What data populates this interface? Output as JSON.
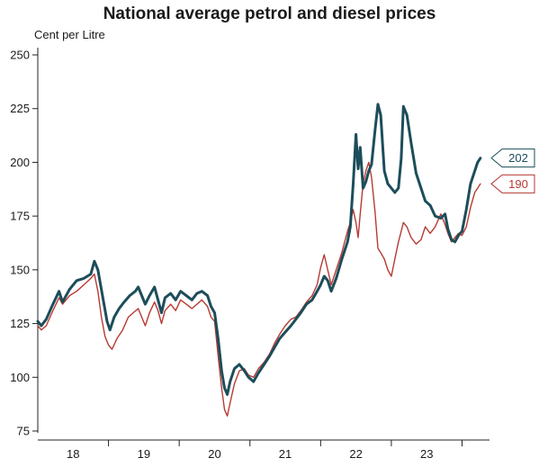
{
  "chart_data": {
    "type": "line",
    "title": "National average petrol and diesel prices",
    "ylabel": "Cent per Litre",
    "xlabel": "",
    "ylim": [
      75,
      250
    ],
    "yticks": [
      75,
      100,
      125,
      150,
      175,
      200,
      225,
      250
    ],
    "xlim": [
      2017.5,
      2023.85
    ],
    "xticks": [
      2018,
      2019,
      2020,
      2021,
      2022,
      2023
    ],
    "xtick_labels": [
      "18",
      "19",
      "20",
      "21",
      "22",
      "23"
    ],
    "year_boundaries": [
      2018.5,
      2019.5,
      2020.5,
      2021.5,
      2022.5,
      2023.5
    ],
    "grid": false,
    "series": [
      {
        "key": "diesel",
        "color": "#1d4d5a",
        "end_label": "202",
        "points": [
          [
            2017.5,
            126
          ],
          [
            2017.55,
            124
          ],
          [
            2017.62,
            127
          ],
          [
            2017.7,
            133
          ],
          [
            2017.8,
            140
          ],
          [
            2017.85,
            135
          ],
          [
            2017.95,
            141
          ],
          [
            2018.05,
            145
          ],
          [
            2018.15,
            146
          ],
          [
            2018.25,
            148
          ],
          [
            2018.3,
            154
          ],
          [
            2018.35,
            150
          ],
          [
            2018.42,
            137
          ],
          [
            2018.48,
            126
          ],
          [
            2018.52,
            122
          ],
          [
            2018.58,
            128
          ],
          [
            2018.65,
            132
          ],
          [
            2018.72,
            135
          ],
          [
            2018.8,
            138
          ],
          [
            2018.88,
            140
          ],
          [
            2018.92,
            142
          ],
          [
            2018.97,
            138
          ],
          [
            2019.02,
            134
          ],
          [
            2019.08,
            138
          ],
          [
            2019.15,
            142
          ],
          [
            2019.2,
            136
          ],
          [
            2019.25,
            130
          ],
          [
            2019.3,
            137
          ],
          [
            2019.38,
            139
          ],
          [
            2019.45,
            136
          ],
          [
            2019.52,
            140
          ],
          [
            2019.6,
            138
          ],
          [
            2019.68,
            136
          ],
          [
            2019.75,
            139
          ],
          [
            2019.82,
            140
          ],
          [
            2019.9,
            138
          ],
          [
            2019.95,
            133
          ],
          [
            2020.0,
            130
          ],
          [
            2020.05,
            118
          ],
          [
            2020.1,
            103
          ],
          [
            2020.14,
            95
          ],
          [
            2020.18,
            92
          ],
          [
            2020.22,
            98
          ],
          [
            2020.28,
            104
          ],
          [
            2020.35,
            106
          ],
          [
            2020.42,
            103
          ],
          [
            2020.48,
            100
          ],
          [
            2020.55,
            98
          ],
          [
            2020.62,
            102
          ],
          [
            2020.7,
            106
          ],
          [
            2020.78,
            110
          ],
          [
            2020.85,
            114
          ],
          [
            2020.92,
            118
          ],
          [
            2021.0,
            121
          ],
          [
            2021.08,
            124
          ],
          [
            2021.15,
            127
          ],
          [
            2021.22,
            130
          ],
          [
            2021.3,
            134
          ],
          [
            2021.38,
            136
          ],
          [
            2021.45,
            140
          ],
          [
            2021.5,
            143
          ],
          [
            2021.55,
            147
          ],
          [
            2021.6,
            145
          ],
          [
            2021.65,
            140
          ],
          [
            2021.72,
            146
          ],
          [
            2021.8,
            155
          ],
          [
            2021.88,
            163
          ],
          [
            2021.92,
            170
          ],
          [
            2021.96,
            190
          ],
          [
            2022.0,
            213
          ],
          [
            2022.03,
            197
          ],
          [
            2022.06,
            207
          ],
          [
            2022.1,
            188
          ],
          [
            2022.14,
            191
          ],
          [
            2022.18,
            196
          ],
          [
            2022.22,
            199
          ],
          [
            2022.27,
            215
          ],
          [
            2022.31,
            227
          ],
          [
            2022.35,
            222
          ],
          [
            2022.4,
            196
          ],
          [
            2022.45,
            190
          ],
          [
            2022.5,
            188
          ],
          [
            2022.55,
            186
          ],
          [
            2022.6,
            188
          ],
          [
            2022.64,
            202
          ],
          [
            2022.67,
            226
          ],
          [
            2022.72,
            222
          ],
          [
            2022.78,
            209
          ],
          [
            2022.85,
            195
          ],
          [
            2022.92,
            188
          ],
          [
            2022.98,
            182
          ],
          [
            2023.05,
            180
          ],
          [
            2023.12,
            175
          ],
          [
            2023.2,
            174
          ],
          [
            2023.26,
            176
          ],
          [
            2023.3,
            169
          ],
          [
            2023.35,
            164
          ],
          [
            2023.4,
            163
          ],
          [
            2023.45,
            166
          ],
          [
            2023.5,
            168
          ],
          [
            2023.56,
            178
          ],
          [
            2023.62,
            190
          ],
          [
            2023.68,
            196
          ],
          [
            2023.72,
            200
          ],
          [
            2023.76,
            202
          ]
        ]
      },
      {
        "key": "petrol",
        "color": "#b73a33",
        "end_label": "190",
        "points": [
          [
            2017.5,
            124
          ],
          [
            2017.55,
            122
          ],
          [
            2017.62,
            124
          ],
          [
            2017.7,
            130
          ],
          [
            2017.8,
            137
          ],
          [
            2017.85,
            134
          ],
          [
            2017.95,
            138
          ],
          [
            2018.05,
            140
          ],
          [
            2018.15,
            143
          ],
          [
            2018.25,
            146
          ],
          [
            2018.3,
            148
          ],
          [
            2018.35,
            140
          ],
          [
            2018.4,
            128
          ],
          [
            2018.45,
            119
          ],
          [
            2018.5,
            115
          ],
          [
            2018.55,
            113
          ],
          [
            2018.62,
            118
          ],
          [
            2018.7,
            122
          ],
          [
            2018.78,
            128
          ],
          [
            2018.85,
            130
          ],
          [
            2018.92,
            132
          ],
          [
            2018.97,
            128
          ],
          [
            2019.02,
            124
          ],
          [
            2019.08,
            130
          ],
          [
            2019.15,
            135
          ],
          [
            2019.2,
            131
          ],
          [
            2019.25,
            125
          ],
          [
            2019.3,
            131
          ],
          [
            2019.38,
            134
          ],
          [
            2019.45,
            131
          ],
          [
            2019.52,
            136
          ],
          [
            2019.6,
            134
          ],
          [
            2019.68,
            132
          ],
          [
            2019.75,
            134
          ],
          [
            2019.82,
            136
          ],
          [
            2019.9,
            133
          ],
          [
            2019.95,
            128
          ],
          [
            2020.0,
            126
          ],
          [
            2020.05,
            110
          ],
          [
            2020.1,
            95
          ],
          [
            2020.14,
            85
          ],
          [
            2020.18,
            82
          ],
          [
            2020.22,
            88
          ],
          [
            2020.28,
            97
          ],
          [
            2020.35,
            103
          ],
          [
            2020.42,
            104
          ],
          [
            2020.48,
            101
          ],
          [
            2020.55,
            100
          ],
          [
            2020.62,
            104
          ],
          [
            2020.7,
            107
          ],
          [
            2020.78,
            111
          ],
          [
            2020.85,
            116
          ],
          [
            2020.92,
            120
          ],
          [
            2021.0,
            124
          ],
          [
            2021.08,
            127
          ],
          [
            2021.15,
            128
          ],
          [
            2021.22,
            131
          ],
          [
            2021.3,
            135
          ],
          [
            2021.38,
            138
          ],
          [
            2021.45,
            143
          ],
          [
            2021.5,
            151
          ],
          [
            2021.55,
            157
          ],
          [
            2021.6,
            150
          ],
          [
            2021.65,
            143
          ],
          [
            2021.72,
            150
          ],
          [
            2021.8,
            158
          ],
          [
            2021.88,
            168
          ],
          [
            2021.92,
            172
          ],
          [
            2021.96,
            178
          ],
          [
            2022.0,
            172
          ],
          [
            2022.03,
            165
          ],
          [
            2022.06,
            176
          ],
          [
            2022.1,
            190
          ],
          [
            2022.14,
            196
          ],
          [
            2022.18,
            200
          ],
          [
            2022.22,
            193
          ],
          [
            2022.27,
            177
          ],
          [
            2022.31,
            160
          ],
          [
            2022.35,
            158
          ],
          [
            2022.4,
            155
          ],
          [
            2022.45,
            150
          ],
          [
            2022.5,
            147
          ],
          [
            2022.55,
            155
          ],
          [
            2022.6,
            163
          ],
          [
            2022.64,
            168
          ],
          [
            2022.67,
            172
          ],
          [
            2022.72,
            170
          ],
          [
            2022.78,
            165
          ],
          [
            2022.85,
            162
          ],
          [
            2022.92,
            164
          ],
          [
            2022.98,
            170
          ],
          [
            2023.05,
            167
          ],
          [
            2023.12,
            170
          ],
          [
            2023.2,
            176
          ],
          [
            2023.26,
            171
          ],
          [
            2023.3,
            167
          ],
          [
            2023.35,
            163
          ],
          [
            2023.4,
            165
          ],
          [
            2023.45,
            167
          ],
          [
            2023.5,
            166
          ],
          [
            2023.56,
            170
          ],
          [
            2023.62,
            179
          ],
          [
            2023.68,
            186
          ],
          [
            2023.72,
            188
          ],
          [
            2023.76,
            190
          ]
        ]
      }
    ]
  }
}
